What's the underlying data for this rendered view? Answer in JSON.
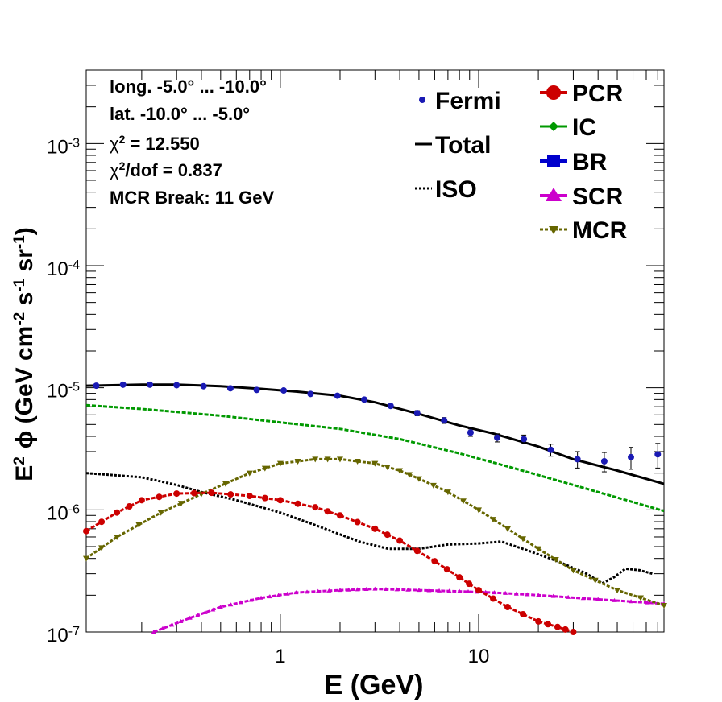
{
  "chart_data": {
    "type": "line",
    "xscale": "log",
    "yscale": "log",
    "xlim": [
      0.105,
      86
    ],
    "ylim": [
      1e-07,
      0.004
    ],
    "xlabel": "E (GeV)",
    "ylabel": {
      "base": "E",
      "exp1": "2",
      "phi": "ϕ",
      "unit1": " (GeV cm",
      "exp2": "-2",
      "unit2": " s",
      "exp3": "-1",
      "unit3": " sr",
      "exp4": "-1",
      "close": ")"
    },
    "xticks": [
      {
        "v": 1,
        "label": "1"
      },
      {
        "v": 10,
        "label": "10"
      }
    ],
    "yticks": [
      {
        "v": 1e-07,
        "base": "10",
        "exp": "-7"
      },
      {
        "v": 1e-06,
        "base": "10",
        "exp": "-6"
      },
      {
        "v": 1e-05,
        "base": "10",
        "exp": "-5"
      },
      {
        "v": 0.0001,
        "base": "10",
        "exp": "-4"
      },
      {
        "v": 0.001,
        "base": "10",
        "exp": "-3"
      }
    ],
    "info": {
      "line1": "long. -5.0° ... -10.0°",
      "line2": "lat. -10.0° ... -5.0°",
      "chi2_sym": "χ",
      "chi2_exp": "2",
      "chi2_val": " = 12.550",
      "chidof_rest": "/dof = 0.837",
      "line5": "MCR Break: 11 GeV"
    },
    "legend": [
      {
        "key": "fermi",
        "label": "Fermi"
      },
      {
        "key": "total",
        "label": "Total"
      },
      {
        "key": "iso",
        "label": "ISO"
      },
      {
        "key": "pcr",
        "label": "PCR"
      },
      {
        "key": "ic",
        "label": "IC"
      },
      {
        "key": "br",
        "label": "BR"
      },
      {
        "key": "scr",
        "label": "SCR"
      },
      {
        "key": "mcr",
        "label": "MCR"
      }
    ],
    "colors": {
      "fermi": "#1a1ab4",
      "total": "#000000",
      "iso": "#000000",
      "pcr": "#cc0000",
      "ic": "#009900",
      "br": "#0000cc",
      "scr": "#cc00cc",
      "mcr": "#666600"
    },
    "fermi": {
      "x": [
        0.118,
        0.161,
        0.22,
        0.3,
        0.41,
        0.56,
        0.76,
        1.04,
        1.42,
        1.94,
        2.65,
        3.6,
        4.9,
        6.7,
        9.1,
        12.4,
        16.9,
        23.1,
        31.5,
        43,
        58.6,
        80
      ],
      "y": [
        1.04e-05,
        1.06e-05,
        1.06e-05,
        1.05e-05,
        1.03e-05,
        9.9e-06,
        9.6e-06,
        9.5e-06,
        8.9e-06,
        8.6e-06,
        8e-06,
        7.1e-06,
        6.2e-06,
        5.4e-06,
        4.3e-06,
        3.9e-06,
        3.8e-06,
        3.1e-06,
        2.6e-06,
        2.5e-06,
        2.7e-06,
        2.85e-06
      ],
      "yerr": [
        2e-07,
        2e-07,
        2e-07,
        2e-07,
        2e-07,
        2e-07,
        2e-07,
        2e-07,
        2e-07,
        2e-07,
        2e-07,
        2e-07,
        3e-07,
        3e-07,
        3e-07,
        3e-07,
        3e-07,
        3.5e-07,
        4e-07,
        4.5e-07,
        5.5e-07,
        6.5e-07
      ]
    },
    "total": {
      "x": [
        0.105,
        0.2,
        0.3,
        0.5,
        0.8,
        1.2,
        2,
        3,
        5,
        8,
        12,
        20,
        30,
        50,
        86
      ],
      "y": [
        1.04e-05,
        1.06e-05,
        1.06e-05,
        1.03e-05,
        9.8e-06,
        9.3e-06,
        8.6e-06,
        7.6e-06,
        6.1e-06,
        4.9e-06,
        4.2e-06,
        3.3e-06,
        2.6e-06,
        2.1e-06,
        1.63e-06
      ]
    },
    "iso": {
      "x": [
        0.105,
        0.2,
        0.3,
        0.4,
        0.6,
        1,
        1.5,
        2.5,
        3.5,
        5,
        7,
        10,
        13,
        18,
        25,
        35,
        42,
        48,
        55,
        65,
        75
      ],
      "y": [
        2e-06,
        1.85e-06,
        1.6e-06,
        1.4e-06,
        1.2e-06,
        9.5e-07,
        7.5e-07,
        5.5e-07,
        4.8e-07,
        4.8e-07,
        5.2e-07,
        5.3e-07,
        5.5e-07,
        4.6e-07,
        3.8e-07,
        3e-07,
        2.5e-07,
        2.8e-07,
        3.3e-07,
        3.2e-07,
        3e-07
      ]
    },
    "pcr": {
      "x": [
        0.105,
        0.15,
        0.2,
        0.3,
        0.45,
        0.7,
        1,
        1.5,
        2,
        3,
        4,
        6,
        8,
        10,
        14,
        20,
        25,
        30
      ],
      "y": [
        6.7e-07,
        9.5e-07,
        1.2e-06,
        1.36e-06,
        1.38e-06,
        1.3e-06,
        1.2e-06,
        1.05e-06,
        9e-07,
        7e-07,
        5.6e-07,
        3.8e-07,
        2.8e-07,
        2.2e-07,
        1.6e-07,
        1.22e-07,
        1.1e-07,
        1e-07
      ]
    },
    "ic": {
      "x": [
        0.105,
        0.2,
        0.5,
        1,
        2,
        4,
        8,
        15,
        30,
        86
      ],
      "y": [
        7.2e-06,
        6.7e-06,
        5.9e-06,
        5.2e-06,
        4.6e-06,
        3.8e-06,
        2.9e-06,
        2.2e-06,
        1.6e-06,
        9.8e-07
      ]
    },
    "scr": {
      "x": [
        0.23,
        0.35,
        0.5,
        0.8,
        1.2,
        2,
        3,
        5,
        8,
        12,
        20,
        40,
        86
      ],
      "y": [
        1e-07,
        1.3e-07,
        1.6e-07,
        1.9e-07,
        2.1e-07,
        2.2e-07,
        2.25e-07,
        2.2e-07,
        2.15e-07,
        2.1e-07,
        2e-07,
        1.85e-07,
        1.7e-07
      ]
    },
    "mcr": {
      "x": [
        0.105,
        0.15,
        0.25,
        0.4,
        0.7,
        1,
        1.5,
        2,
        3,
        4,
        5,
        7,
        10,
        14,
        20,
        30,
        50,
        86
      ],
      "y": [
        4e-07,
        6e-07,
        9.5e-07,
        1.35e-06,
        2e-06,
        2.4e-06,
        2.6e-06,
        2.6e-06,
        2.4e-06,
        2.1e-06,
        1.8e-06,
        1.4e-06,
        1e-06,
        7e-07,
        4.8e-07,
        3.2e-07,
        2.2e-07,
        1.65e-07
      ]
    }
  }
}
